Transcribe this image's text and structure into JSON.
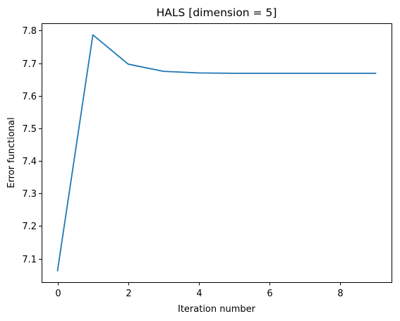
{
  "chart_data": {
    "type": "line",
    "title": "HALS [dimension = 5]",
    "xlabel": "Iteration number",
    "ylabel": "Error functional",
    "x": [
      0,
      1,
      2,
      3,
      4,
      5,
      6,
      7,
      8,
      9
    ],
    "series": [
      {
        "values": [
          7.063,
          7.787,
          7.697,
          7.675,
          7.67,
          7.669,
          7.669,
          7.669,
          7.669,
          7.669
        ],
        "color": "#1f77b4"
      }
    ],
    "xlim": [
      -0.45,
      9.45
    ],
    "ylim": [
      7.0275,
      7.8225
    ],
    "xticks": [
      0,
      2,
      4,
      6,
      8
    ],
    "xtick_labels": [
      "0",
      "2",
      "4",
      "6",
      "8"
    ],
    "yticks": [
      7.1,
      7.2,
      7.3,
      7.4,
      7.5,
      7.6,
      7.7,
      7.8
    ],
    "ytick_labels": [
      "7.1",
      "7.2",
      "7.3",
      "7.4",
      "7.5",
      "7.6",
      "7.7",
      "7.8"
    ],
    "grid": false,
    "legend": "none"
  }
}
